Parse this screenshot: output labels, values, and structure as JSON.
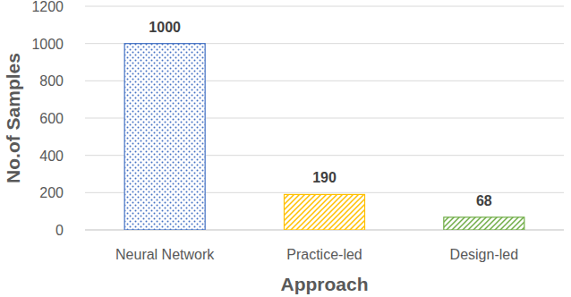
{
  "chart_data": {
    "type": "bar",
    "categories": [
      "Neural Network",
      "Practice-led",
      "Design-led"
    ],
    "values": [
      1000,
      190,
      68
    ],
    "colors": [
      "#4472c4",
      "#ffc000",
      "#70ad47"
    ],
    "x_label": "Approach",
    "y_label": "No.of Samples",
    "ylim": [
      0,
      1200
    ],
    "yticks": [
      0,
      200,
      400,
      600,
      800,
      1000,
      1200
    ],
    "grid": true,
    "data_labels": true
  }
}
